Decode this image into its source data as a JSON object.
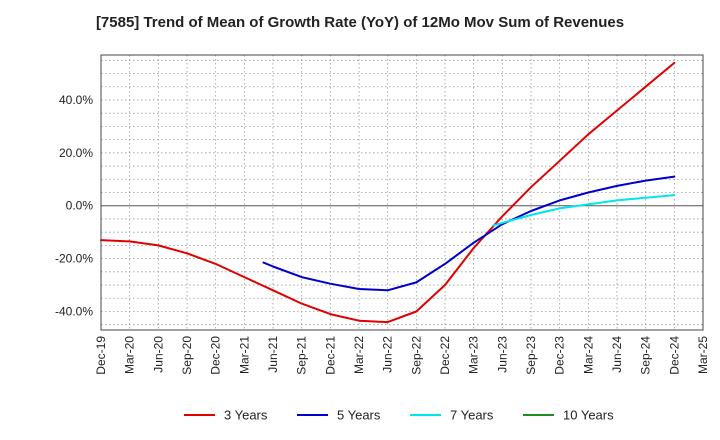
{
  "chart_data": {
    "type": "line",
    "title": "[7585]  Trend of Mean of Growth Rate (YoY) of 12Mo Mov Sum of Revenues",
    "xlabel": "",
    "ylabel": "",
    "x_ticks": [
      "Dec-19",
      "Mar-20",
      "Jun-20",
      "Sep-20",
      "Dec-20",
      "Mar-21",
      "Jun-21",
      "Sep-21",
      "Dec-21",
      "Mar-22",
      "Jun-22",
      "Sep-22",
      "Dec-22",
      "Mar-23",
      "Jun-23",
      "Sep-23",
      "Dec-23",
      "Mar-24",
      "Jun-24",
      "Sep-24",
      "Dec-24",
      "Mar-25"
    ],
    "y_ticks": [
      {
        "value": 40,
        "label": "40.0%"
      },
      {
        "value": 20,
        "label": "20.0%"
      },
      {
        "value": 0,
        "label": "0.0%"
      },
      {
        "value": -20,
        "label": "-20.0%"
      },
      {
        "value": -40,
        "label": "-40.0%"
      }
    ],
    "ylim": [
      -47,
      57
    ],
    "grid": true,
    "legend_position": "bottom",
    "series": [
      {
        "name": "3 Years",
        "color": "#e00000",
        "points": [
          [
            0,
            -13
          ],
          [
            1,
            -13.5
          ],
          [
            2,
            -15
          ],
          [
            3,
            -18
          ],
          [
            4,
            -22
          ],
          [
            5,
            -27
          ],
          [
            6,
            -32
          ],
          [
            7,
            -37
          ],
          [
            8,
            -41
          ],
          [
            9,
            -43.5
          ],
          [
            10,
            -44
          ],
          [
            11,
            -40
          ],
          [
            12,
            -30
          ],
          [
            13,
            -16
          ],
          [
            14,
            -4
          ],
          [
            15,
            7
          ],
          [
            16,
            17
          ],
          [
            17,
            27
          ],
          [
            18,
            36
          ],
          [
            19,
            45
          ],
          [
            20,
            54
          ]
        ]
      },
      {
        "name": "5 Years",
        "color": "#0000cc",
        "points": [
          [
            5.67,
            -21.5
          ],
          [
            6,
            -23
          ],
          [
            7,
            -27
          ],
          [
            8,
            -29.5
          ],
          [
            9,
            -31.5
          ],
          [
            10,
            -32
          ],
          [
            11,
            -29
          ],
          [
            12,
            -22
          ],
          [
            13,
            -14
          ],
          [
            14,
            -7
          ],
          [
            15,
            -2
          ],
          [
            16,
            2
          ],
          [
            17,
            5
          ],
          [
            18,
            7.5
          ],
          [
            19,
            9.5
          ],
          [
            20,
            11
          ]
        ]
      },
      {
        "name": "7 Years",
        "color": "#00e5ee",
        "points": [
          [
            13.67,
            -7.5
          ],
          [
            14,
            -6.5
          ],
          [
            15,
            -3.5
          ],
          [
            16,
            -1
          ],
          [
            17,
            0.5
          ],
          [
            18,
            2
          ],
          [
            19,
            3
          ],
          [
            20,
            4
          ]
        ]
      },
      {
        "name": "10 Years",
        "color": "#228b22",
        "points": []
      }
    ]
  }
}
